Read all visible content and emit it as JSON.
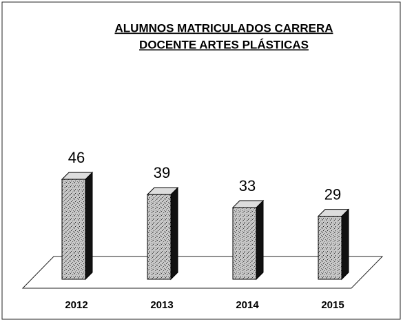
{
  "chart_data": {
    "type": "bar3d",
    "title": [
      "ALUMNOS MATRICULADOS CARRERA",
      "DOCENTE ARTES PLÁSTICAS"
    ],
    "categories": [
      "2012",
      "2013",
      "2014",
      "2015"
    ],
    "values": [
      46,
      39,
      33,
      29
    ],
    "color": "#b8b8b8"
  }
}
